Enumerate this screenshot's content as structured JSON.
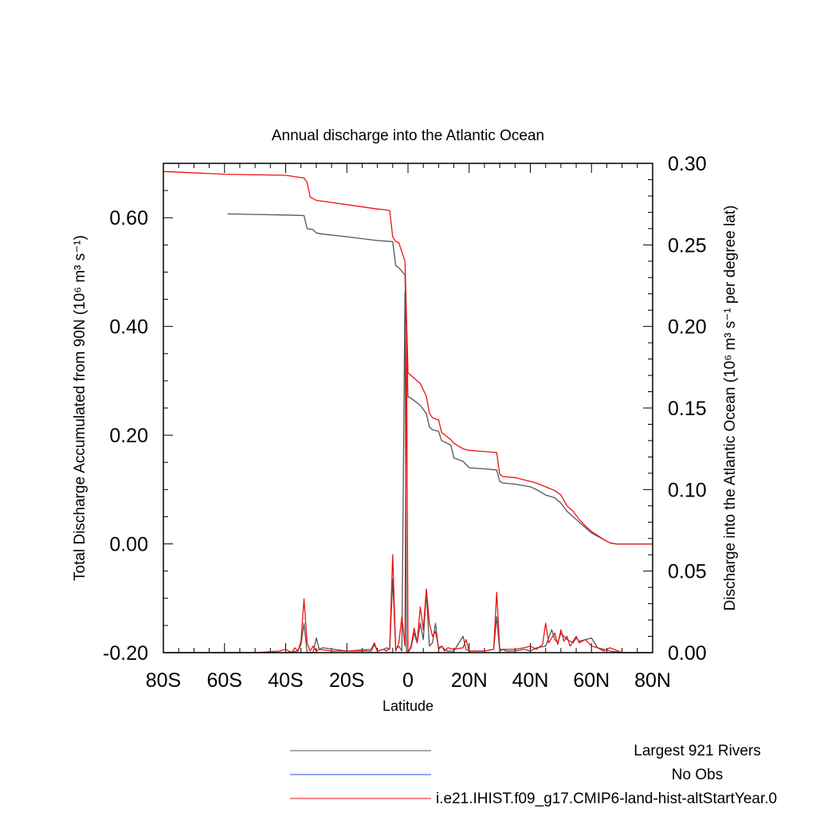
{
  "chart_data": {
    "type": "line",
    "title": "Annual discharge into the Atlantic Ocean",
    "xlabel": "Latitude",
    "ylabel_left": "Total Discharge Accumulated from 90N (10⁶ m³ s⁻¹)",
    "ylabel_right": "Discharge into the Atlantic Ocean (10⁶ m³ s⁻¹ per degree lat)",
    "x_ticks": [
      {
        "value": -80,
        "label": "80S"
      },
      {
        "value": -60,
        "label": "60S"
      },
      {
        "value": -40,
        "label": "40S"
      },
      {
        "value": -20,
        "label": "20S"
      },
      {
        "value": 0,
        "label": "0"
      },
      {
        "value": 20,
        "label": "20N"
      },
      {
        "value": 40,
        "label": "40N"
      },
      {
        "value": 60,
        "label": "60N"
      },
      {
        "value": 80,
        "label": "80N"
      }
    ],
    "xlim": [
      -80,
      80
    ],
    "ylim_left": [
      -0.2,
      0.7
    ],
    "ylim_right": [
      0.0,
      0.3
    ],
    "left_ticks": [
      {
        "value": -0.2,
        "label": "-0.20"
      },
      {
        "value": 0.0,
        "label": "0.00"
      },
      {
        "value": 0.2,
        "label": "0.20"
      },
      {
        "value": 0.4,
        "label": "0.40"
      },
      {
        "value": 0.6,
        "label": "0.60"
      }
    ],
    "right_ticks": [
      {
        "value": 0.0,
        "label": "0.00"
      },
      {
        "value": 0.05,
        "label": "0.05"
      },
      {
        "value": 0.1,
        "label": "0.10"
      },
      {
        "value": 0.15,
        "label": "0.15"
      },
      {
        "value": 0.2,
        "label": "0.20"
      },
      {
        "value": 0.25,
        "label": "0.25"
      },
      {
        "value": 0.3,
        "label": "0.30"
      }
    ],
    "legend_position": "bottom",
    "series": [
      {
        "name": "Largest 921 Rivers",
        "color": "#555555",
        "axis": "left",
        "kind": "accumulated",
        "x": [
          -59,
          -50,
          -40,
          -34,
          -33,
          -31,
          -30,
          -28,
          -20,
          -10,
          -5,
          -4,
          -3,
          -1,
          0,
          0.5,
          1,
          4,
          6,
          7,
          8,
          10,
          11,
          14,
          15,
          18,
          20,
          25,
          29,
          30,
          31,
          35,
          40,
          42,
          45,
          48,
          50,
          52,
          54,
          56,
          58,
          60,
          64,
          66,
          68,
          80
        ],
        "y": [
          0.607,
          0.606,
          0.605,
          0.604,
          0.58,
          0.578,
          0.572,
          0.57,
          0.565,
          0.558,
          0.556,
          0.512,
          0.508,
          0.495,
          0.27,
          0.27,
          0.268,
          0.255,
          0.24,
          0.215,
          0.21,
          0.207,
          0.19,
          0.182,
          0.158,
          0.152,
          0.14,
          0.138,
          0.136,
          0.115,
          0.112,
          0.11,
          0.105,
          0.1,
          0.09,
          0.085,
          0.075,
          0.06,
          0.05,
          0.04,
          0.03,
          0.02,
          0.008,
          0.002,
          0.0,
          0.0
        ]
      },
      {
        "name": "No Obs",
        "color": "#3344ee",
        "axis": "left",
        "kind": "none",
        "x": [],
        "y": []
      },
      {
        "name": "i.e21.IHIST.f09_g17.CMIP6-land-hist-altStartYear.0",
        "color": "#ee1111",
        "axis": "left",
        "kind": "accumulated",
        "x": [
          -80,
          -60,
          -40,
          -34,
          -33,
          -32,
          -30,
          -25,
          -20,
          -10,
          -8,
          -6,
          -5,
          -4,
          -3,
          -1,
          0,
          0.5,
          1,
          4,
          6,
          7,
          8,
          10,
          11,
          14,
          15,
          18,
          20,
          25,
          29,
          30,
          31,
          35,
          40,
          42,
          45,
          48,
          50,
          52,
          54,
          56,
          58,
          60,
          64,
          66,
          68,
          80
        ],
        "y": [
          0.685,
          0.68,
          0.678,
          0.673,
          0.665,
          0.638,
          0.632,
          0.628,
          0.624,
          0.616,
          0.615,
          0.613,
          0.565,
          0.556,
          0.554,
          0.52,
          0.315,
          0.312,
          0.31,
          0.295,
          0.272,
          0.24,
          0.232,
          0.228,
          0.205,
          0.192,
          0.185,
          0.175,
          0.172,
          0.17,
          0.168,
          0.128,
          0.124,
          0.122,
          0.115,
          0.112,
          0.105,
          0.098,
          0.09,
          0.07,
          0.06,
          0.045,
          0.033,
          0.023,
          0.008,
          0.002,
          0.0,
          0.0
        ]
      },
      {
        "name": "Largest 921 Rivers (per degree)",
        "color": "#555555",
        "axis": "right",
        "kind": "per_degree",
        "x": [
          -80,
          -50,
          -40,
          -36,
          -35,
          -34,
          -33,
          -31,
          -30,
          -29,
          -28,
          -20,
          -12,
          -11,
          -10,
          -8,
          -7,
          -6,
          -5,
          -4,
          -3,
          -2,
          -1,
          -0.5,
          0,
          1,
          2,
          3,
          4,
          5,
          6,
          7,
          8,
          9,
          10,
          11,
          12,
          13,
          15,
          18,
          19,
          20,
          22,
          25,
          28,
          29,
          30,
          31,
          32,
          35,
          38,
          40,
          42,
          45,
          47,
          48,
          49,
          50,
          52,
          54,
          55,
          56,
          58,
          60,
          62,
          64,
          66,
          70,
          80
        ],
        "y": [
          0.0,
          0.0,
          0.0,
          0.001,
          0.005,
          0.018,
          0.0,
          0.0,
          0.009,
          0.002,
          0.003,
          0.001,
          0.001,
          0.005,
          0.001,
          0.002,
          0.003,
          0.002,
          0.045,
          0.002,
          0.004,
          0.001,
          0.221,
          0.001,
          0.0,
          0.003,
          0.012,
          0.006,
          0.018,
          0.008,
          0.037,
          0.004,
          0.006,
          0.018,
          0.002,
          0.004,
          0.002,
          0.001,
          0.001,
          0.01,
          0.002,
          0.001,
          0.001,
          0.001,
          0.002,
          0.022,
          0.001,
          0.002,
          0.001,
          0.001,
          0.002,
          0.001,
          0.003,
          0.004,
          0.014,
          0.008,
          0.006,
          0.012,
          0.008,
          0.006,
          0.009,
          0.007,
          0.008,
          0.009,
          0.003,
          0.002,
          0.001,
          0.0,
          0.0
        ]
      },
      {
        "name": "i.e21.IHIST.f09_g17.CMIP6-land-hist-altStartYear.0 (per degree)",
        "color": "#ee1111",
        "axis": "right",
        "kind": "per_degree",
        "x": [
          -80,
          -50,
          -42,
          -40,
          -38,
          -37,
          -36,
          -35,
          -34,
          -33,
          -32,
          -31,
          -30,
          -29,
          -25,
          -20,
          -12,
          -11,
          -10,
          -8,
          -7,
          -6,
          -5,
          -4,
          -3,
          -2,
          -1,
          -0.5,
          0,
          1,
          2,
          3,
          4,
          5,
          6,
          7,
          8,
          9,
          10,
          11,
          12,
          13,
          15,
          18,
          19,
          20,
          25,
          28,
          29,
          30,
          31,
          35,
          38,
          40,
          42,
          44,
          45,
          46,
          48,
          49,
          50,
          51,
          52,
          53,
          54,
          55,
          56,
          58,
          60,
          62,
          64,
          66,
          70,
          80
        ],
        "y": [
          0.0,
          0.0,
          0.001,
          0.002,
          0.0,
          0.003,
          0.001,
          0.007,
          0.033,
          0.006,
          0.001,
          0.004,
          0.001,
          0.002,
          0.001,
          0.001,
          0.002,
          0.006,
          0.001,
          0.002,
          0.001,
          0.003,
          0.06,
          0.001,
          0.006,
          0.022,
          0.004,
          0.196,
          0.0,
          0.004,
          0.015,
          0.006,
          0.028,
          0.014,
          0.039,
          0.018,
          0.01,
          0.013,
          0.003,
          0.004,
          0.001,
          0.003,
          0.002,
          0.003,
          0.008,
          0.001,
          0.001,
          0.002,
          0.037,
          0.002,
          0.002,
          0.002,
          0.003,
          0.004,
          0.002,
          0.005,
          0.018,
          0.006,
          0.012,
          0.005,
          0.014,
          0.007,
          0.01,
          0.004,
          0.007,
          0.01,
          0.006,
          0.008,
          0.004,
          0.003,
          0.001,
          0.003,
          0.0,
          0.0
        ]
      }
    ]
  },
  "legend": [
    {
      "label": "Largest 921 Rivers",
      "color": "#555555"
    },
    {
      "label": "No Obs",
      "color": "#3344ee"
    },
    {
      "label": "i.e21.IHIST.f09_g17.CMIP6-land-hist-altStartYear.0",
      "color": "#ee1111"
    }
  ]
}
